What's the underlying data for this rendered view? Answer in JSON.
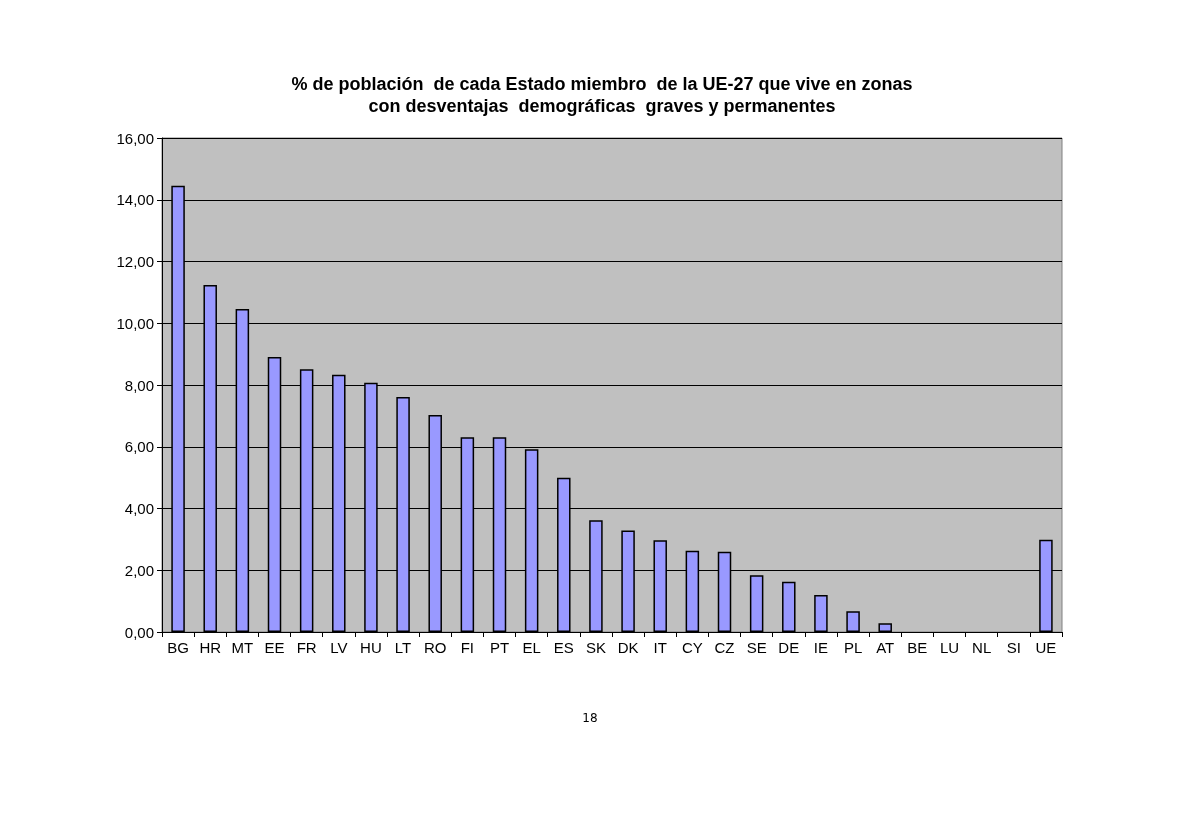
{
  "chart_data": {
    "type": "bar",
    "title": "% de población  de cada Estado miembro  de la UE-27 que vive en zonas\ncon desventajas  demográficas  graves y permanentes",
    "categories": [
      "BG",
      "HR",
      "MT",
      "EE",
      "FR",
      "LV",
      "HU",
      "LT",
      "RO",
      "FI",
      "PT",
      "EL",
      "ES",
      "SK",
      "DK",
      "IT",
      "CY",
      "CZ",
      "SE",
      "DE",
      "IE",
      "PL",
      "AT",
      "BE",
      "LU",
      "NL",
      "SI",
      "UE"
    ],
    "values": [
      14.45,
      11.24,
      10.46,
      8.91,
      8.51,
      8.33,
      8.07,
      7.61,
      7.03,
      6.31,
      6.31,
      5.92,
      5.0,
      3.62,
      3.29,
      2.97,
      2.63,
      2.6,
      1.84,
      1.63,
      1.2,
      0.67,
      0.28,
      0,
      0,
      0,
      0,
      2.99
    ],
    "color": "#9999ff",
    "ylim": [
      0,
      16
    ],
    "yticks": [
      {
        "value": 0,
        "label": "0,00"
      },
      {
        "value": 2,
        "label": "2,00"
      },
      {
        "value": 4,
        "label": "4,00"
      },
      {
        "value": 6,
        "label": "6,00"
      },
      {
        "value": 8,
        "label": "8,00"
      },
      {
        "value": 10,
        "label": "10,00"
      },
      {
        "value": 12,
        "label": "12,00"
      },
      {
        "value": 14,
        "label": "14,00"
      },
      {
        "value": 16,
        "label": "16,00"
      }
    ],
    "grid": "y",
    "annotations": [
      "18"
    ]
  }
}
